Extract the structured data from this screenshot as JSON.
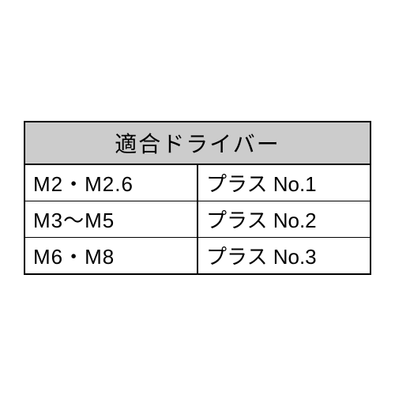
{
  "table": {
    "header": "適合ドライバー",
    "columns": [
      "size",
      "driver"
    ],
    "rows": [
      {
        "size": "M2・M2.6",
        "driver": "プラス No.1"
      },
      {
        "size": "M3〜M5",
        "driver": "プラス No.2"
      },
      {
        "size": "M6・M8",
        "driver": "プラス No.3"
      }
    ],
    "colors": {
      "header_bg": "#cccccc",
      "border": "#000000",
      "background": "#ffffff",
      "text": "#000000"
    },
    "font_sizes": {
      "header": 28,
      "cell": 26
    }
  }
}
